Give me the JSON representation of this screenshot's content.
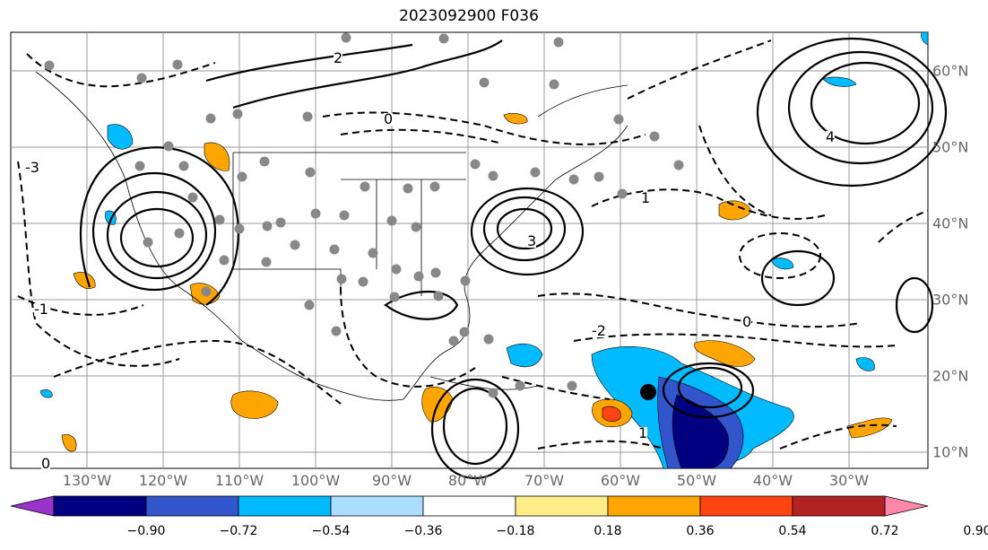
{
  "title": "2023092900 F036",
  "map": {
    "lon_labels": [
      "130°W",
      "120°W",
      "110°W",
      "100°W",
      "90°W",
      "80°W",
      "70°W",
      "60°W",
      "50°W",
      "40°W",
      "30°W"
    ],
    "lat_labels": [
      "60°N",
      "50°N",
      "40°N",
      "30°N",
      "20°N",
      "10°N"
    ],
    "contour_labels": [
      "0",
      "-1",
      "2",
      "-2",
      "3",
      "-3",
      "1",
      "4"
    ]
  },
  "colorbar": {
    "ticks": [
      "−0.90",
      "−0.72",
      "−0.54",
      "−0.36",
      "−0.18",
      "0.18",
      "0.36",
      "0.54",
      "0.72",
      "0.90"
    ],
    "colors": [
      "#9933cc",
      "#000080",
      "#3355cc",
      "#00bbff",
      "#aaddff",
      "#ffffff",
      "#ffee88",
      "#ffa500",
      "#ff4411",
      "#b22222",
      "#ff88aa"
    ]
  }
}
